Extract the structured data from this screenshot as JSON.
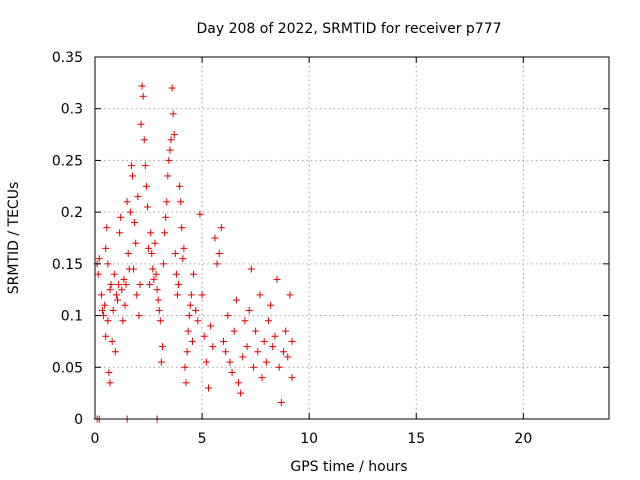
{
  "chart_data": {
    "type": "scatter",
    "title": "Day 208 of 2022, SRMTID for receiver p777",
    "xlabel": "GPS time / hours",
    "ylabel": "SRMTID / TECUs",
    "xlim": [
      0,
      24
    ],
    "ylim": [
      0,
      0.35
    ],
    "xticks": [
      0,
      5,
      10,
      15,
      20
    ],
    "yticks": [
      0,
      0.05,
      0.1,
      0.15,
      0.2,
      0.25,
      0.3,
      0.35
    ],
    "xtick_labels": [
      "0",
      "5",
      "10",
      "15",
      "20"
    ],
    "ytick_labels": [
      "0",
      "0.05",
      "0.1",
      "0.15",
      "0.2",
      "0.25",
      "0.3",
      "0.35"
    ],
    "grid": true,
    "marker": "+",
    "color": "#e00000",
    "series": [
      {
        "name": "p777",
        "points": [
          [
            0.1,
            0.15
          ],
          [
            0.15,
            0.14
          ],
          [
            0.2,
            0.155
          ],
          [
            0.3,
            0.12
          ],
          [
            0.35,
            0.105
          ],
          [
            0.4,
            0.1
          ],
          [
            0.45,
            0.11
          ],
          [
            0.5,
            0.165
          ],
          [
            0.5,
            0.08
          ],
          [
            0.55,
            0.185
          ],
          [
            0.6,
            0.095
          ],
          [
            0.6,
            0.15
          ],
          [
            0.65,
            0.045
          ],
          [
            0.7,
            0.035
          ],
          [
            0.7,
            0.125
          ],
          [
            0.75,
            0.13
          ],
          [
            0.8,
            0.075
          ],
          [
            0.85,
            0.105
          ],
          [
            0.9,
            0.14
          ],
          [
            0.95,
            0.065
          ],
          [
            1.0,
            0.12
          ],
          [
            1.05,
            0.115
          ],
          [
            1.1,
            0.13
          ],
          [
            1.15,
            0.18
          ],
          [
            1.2,
            0.195
          ],
          [
            1.25,
            0.125
          ],
          [
            1.3,
            0.095
          ],
          [
            1.35,
            0.135
          ],
          [
            1.4,
            0.11
          ],
          [
            1.45,
            0.13
          ],
          [
            1.5,
            0.21
          ],
          [
            1.55,
            0.16
          ],
          [
            1.6,
            0.145
          ],
          [
            1.65,
            0.2
          ],
          [
            1.7,
            0.245
          ],
          [
            1.75,
            0.235
          ],
          [
            1.8,
            0.145
          ],
          [
            1.85,
            0.19
          ],
          [
            1.9,
            0.17
          ],
          [
            1.95,
            0.12
          ],
          [
            2.0,
            0.215
          ],
          [
            2.05,
            0.1
          ],
          [
            2.1,
            0.13
          ],
          [
            2.15,
            0.285
          ],
          [
            2.2,
            0.322
          ],
          [
            2.25,
            0.312
          ],
          [
            2.3,
            0.27
          ],
          [
            2.35,
            0.245
          ],
          [
            2.4,
            0.225
          ],
          [
            2.45,
            0.205
          ],
          [
            2.5,
            0.165
          ],
          [
            2.55,
            0.13
          ],
          [
            2.6,
            0.18
          ],
          [
            2.65,
            0.16
          ],
          [
            2.7,
            0.145
          ],
          [
            2.75,
            0.135
          ],
          [
            2.8,
            0.17
          ],
          [
            2.85,
            0.14
          ],
          [
            2.9,
            0.125
          ],
          [
            2.95,
            0.115
          ],
          [
            3.0,
            0.105
          ],
          [
            3.05,
            0.095
          ],
          [
            3.1,
            0.055
          ],
          [
            3.15,
            0.07
          ],
          [
            3.2,
            0.15
          ],
          [
            3.25,
            0.18
          ],
          [
            3.3,
            0.195
          ],
          [
            3.35,
            0.21
          ],
          [
            3.4,
            0.235
          ],
          [
            3.45,
            0.25
          ],
          [
            3.5,
            0.26
          ],
          [
            3.55,
            0.27
          ],
          [
            3.6,
            0.32
          ],
          [
            3.65,
            0.295
          ],
          [
            3.7,
            0.275
          ],
          [
            3.75,
            0.16
          ],
          [
            3.8,
            0.14
          ],
          [
            3.85,
            0.12
          ],
          [
            3.9,
            0.13
          ],
          [
            3.95,
            0.225
          ],
          [
            4.0,
            0.21
          ],
          [
            4.05,
            0.185
          ],
          [
            4.1,
            0.155
          ],
          [
            4.15,
            0.165
          ],
          [
            4.2,
            0.05
          ],
          [
            4.25,
            0.035
          ],
          [
            4.3,
            0.065
          ],
          [
            4.35,
            0.085
          ],
          [
            4.4,
            0.1
          ],
          [
            4.45,
            0.11
          ],
          [
            4.5,
            0.12
          ],
          [
            4.55,
            0.075
          ],
          [
            4.6,
            0.14
          ],
          [
            4.7,
            0.105
          ],
          [
            4.8,
            0.095
          ],
          [
            4.9,
            0.198
          ],
          [
            5.0,
            0.12
          ],
          [
            5.1,
            0.08
          ],
          [
            5.2,
            0.055
          ],
          [
            5.3,
            0.03
          ],
          [
            5.4,
            0.09
          ],
          [
            5.5,
            0.07
          ],
          [
            5.6,
            0.175
          ],
          [
            5.7,
            0.15
          ],
          [
            5.8,
            0.16
          ],
          [
            5.9,
            0.185
          ],
          [
            6.0,
            0.075
          ],
          [
            6.1,
            0.065
          ],
          [
            6.2,
            0.1
          ],
          [
            6.3,
            0.055
          ],
          [
            6.4,
            0.045
          ],
          [
            6.5,
            0.085
          ],
          [
            6.6,
            0.115
          ],
          [
            6.7,
            0.035
          ],
          [
            6.8,
            0.025
          ],
          [
            6.9,
            0.06
          ],
          [
            7.0,
            0.095
          ],
          [
            7.1,
            0.07
          ],
          [
            7.2,
            0.105
          ],
          [
            7.3,
            0.145
          ],
          [
            7.4,
            0.05
          ],
          [
            7.5,
            0.085
          ],
          [
            7.6,
            0.065
          ],
          [
            7.7,
            0.12
          ],
          [
            7.8,
            0.04
          ],
          [
            7.9,
            0.075
          ],
          [
            8.0,
            0.055
          ],
          [
            8.1,
            0.095
          ],
          [
            8.2,
            0.11
          ],
          [
            8.3,
            0.07
          ],
          [
            8.4,
            0.08
          ],
          [
            8.5,
            0.135
          ],
          [
            8.6,
            0.05
          ],
          [
            8.7,
            0.016
          ],
          [
            8.8,
            0.065
          ],
          [
            8.9,
            0.085
          ],
          [
            9.0,
            0.06
          ],
          [
            9.1,
            0.12
          ],
          [
            9.2,
            0.075
          ],
          [
            9.2,
            0.04
          ],
          [
            0.1,
            0.0
          ],
          [
            0.2,
            0.0
          ],
          [
            1.5,
            0.0
          ],
          [
            2.9,
            0.0
          ]
        ]
      }
    ]
  }
}
